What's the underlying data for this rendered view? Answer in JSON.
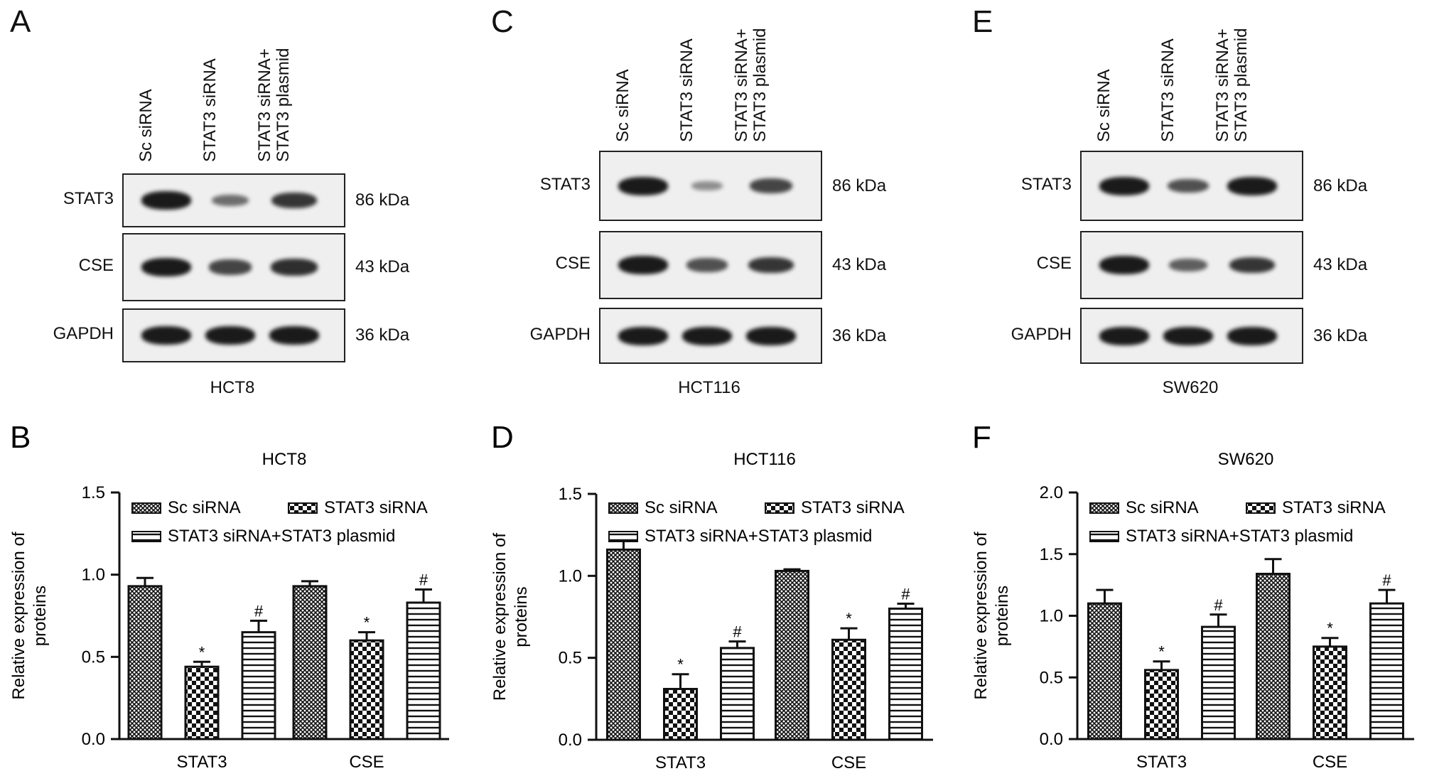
{
  "panels": [
    {
      "blot_letter": "A",
      "chart_letter": "B",
      "cell_line": "HCT8",
      "lanes": [
        "Sc siRNA",
        "STAT3 siRNA",
        "STAT3 siRNA+\nSTAT3 plasmid"
      ],
      "rows": [
        {
          "label": "STAT3",
          "kda": "86 kDa",
          "intensity": [
            1.0,
            0.4,
            0.8
          ]
        },
        {
          "label": "CSE",
          "kda": "43 kDa",
          "intensity": [
            1.0,
            0.7,
            0.85
          ]
        },
        {
          "label": "GAPDH",
          "kda": "36 kDa",
          "intensity": [
            1.0,
            1.0,
            1.0
          ]
        }
      ]
    },
    {
      "blot_letter": "C",
      "chart_letter": "D",
      "cell_line": "HCT116",
      "lanes": [
        "Sc siRNA",
        "STAT3 siRNA",
        "STAT3 siRNA+\nSTAT3 plasmid"
      ],
      "rows": [
        {
          "label": "STAT3",
          "kda": "86 kDa",
          "intensity": [
            1.0,
            0.15,
            0.7
          ]
        },
        {
          "label": "CSE",
          "kda": "43 kDa",
          "intensity": [
            1.0,
            0.6,
            0.8
          ]
        },
        {
          "label": "GAPDH",
          "kda": "36 kDa",
          "intensity": [
            1.0,
            1.0,
            1.0
          ]
        }
      ]
    },
    {
      "blot_letter": "E",
      "chart_letter": "F",
      "cell_line": "SW620",
      "lanes": [
        "Sc siRNA",
        "STAT3 siRNA",
        "STAT3 siRNA+\nSTAT3 plasmid"
      ],
      "rows": [
        {
          "label": "STAT3",
          "kda": "86 kDa",
          "intensity": [
            1.0,
            0.6,
            1.0
          ]
        },
        {
          "label": "CSE",
          "kda": "43 kDa",
          "intensity": [
            1.0,
            0.5,
            0.8
          ]
        },
        {
          "label": "GAPDH",
          "kda": "36 kDa",
          "intensity": [
            1.0,
            1.0,
            1.0
          ]
        }
      ]
    }
  ],
  "chart_data": [
    {
      "type": "bar",
      "title": "HCT8",
      "ylabel": "Relative expression of\nproteins",
      "ylim": [
        0,
        1.5
      ],
      "yticks": [
        "0.0",
        "0.5",
        "1.0",
        "1.5"
      ],
      "ytick_values": [
        0,
        0.5,
        1.0,
        1.5
      ],
      "categories": [
        "STAT3",
        "CSE"
      ],
      "legend_layout": "two-rows",
      "series": [
        {
          "name": "Sc siRNA",
          "pattern": "dense",
          "values": [
            0.93,
            0.93
          ],
          "errors": [
            0.05,
            0.03
          ],
          "marks": [
            "",
            ""
          ]
        },
        {
          "name": "STAT3 siRNA",
          "pattern": "checker",
          "values": [
            0.44,
            0.6
          ],
          "errors": [
            0.03,
            0.05
          ],
          "marks": [
            "*",
            "*"
          ]
        },
        {
          "name": "STAT3 siRNA+STAT3 plasmid",
          "pattern": "hlines",
          "values": [
            0.65,
            0.83
          ],
          "errors": [
            0.07,
            0.08
          ],
          "marks": [
            "#",
            "#"
          ]
        }
      ]
    },
    {
      "type": "bar",
      "title": "HCT116",
      "ylabel": "Relative expression of\nproteins",
      "ylim": [
        0,
        1.5
      ],
      "yticks": [
        "0.0",
        "0.5",
        "1.0",
        "1.5"
      ],
      "ytick_values": [
        0,
        0.5,
        1.0,
        1.5
      ],
      "categories": [
        "STAT3",
        "CSE"
      ],
      "legend_layout": "two-rows",
      "series": [
        {
          "name": "Sc siRNA",
          "pattern": "dense",
          "values": [
            1.16,
            1.03
          ],
          "errors": [
            0.08,
            0.01
          ],
          "marks": [
            "",
            ""
          ]
        },
        {
          "name": "STAT3 siRNA",
          "pattern": "checker",
          "values": [
            0.31,
            0.61
          ],
          "errors": [
            0.09,
            0.07
          ],
          "marks": [
            "*",
            "*"
          ]
        },
        {
          "name": "STAT3 siRNA+STAT3 plasmid",
          "pattern": "hlines",
          "values": [
            0.56,
            0.8
          ],
          "errors": [
            0.04,
            0.03
          ],
          "marks": [
            "#",
            "#"
          ]
        }
      ]
    },
    {
      "type": "bar",
      "title": "SW620",
      "ylabel": "Relative expression of\nproteins",
      "ylim": [
        0,
        2.0
      ],
      "yticks": [
        "0.0",
        "0.5",
        "1.0",
        "1.5",
        "2.0"
      ],
      "ytick_values": [
        0,
        0.5,
        1.0,
        1.5,
        2.0
      ],
      "categories": [
        "STAT3",
        "CSE"
      ],
      "legend_layout": "two-rows",
      "series": [
        {
          "name": "Sc siRNA",
          "pattern": "dense",
          "values": [
            1.1,
            1.34
          ],
          "errors": [
            0.11,
            0.12
          ],
          "marks": [
            "",
            ""
          ]
        },
        {
          "name": "STAT3 siRNA",
          "pattern": "checker",
          "values": [
            0.56,
            0.75
          ],
          "errors": [
            0.07,
            0.07
          ],
          "marks": [
            "*",
            "*"
          ]
        },
        {
          "name": "STAT3 siRNA+STAT3 plasmid",
          "pattern": "hlines",
          "values": [
            0.91,
            1.1
          ],
          "errors": [
            0.1,
            0.11
          ],
          "marks": [
            "#",
            "#"
          ]
        }
      ]
    }
  ]
}
